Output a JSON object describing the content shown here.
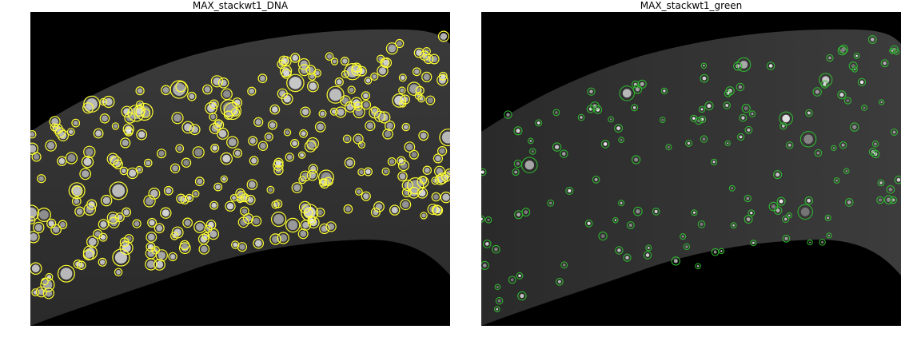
{
  "panels": [
    {
      "title": "MAX_stackwt1_DNA",
      "marker_color": "#ffff33",
      "marker_shape": "circle",
      "image_tint": "grayscale"
    },
    {
      "title": "MAX_stackwt1_green",
      "marker_color": "#2fbf2f",
      "marker_shape": "circle",
      "image_tint": "grayscale"
    }
  ]
}
